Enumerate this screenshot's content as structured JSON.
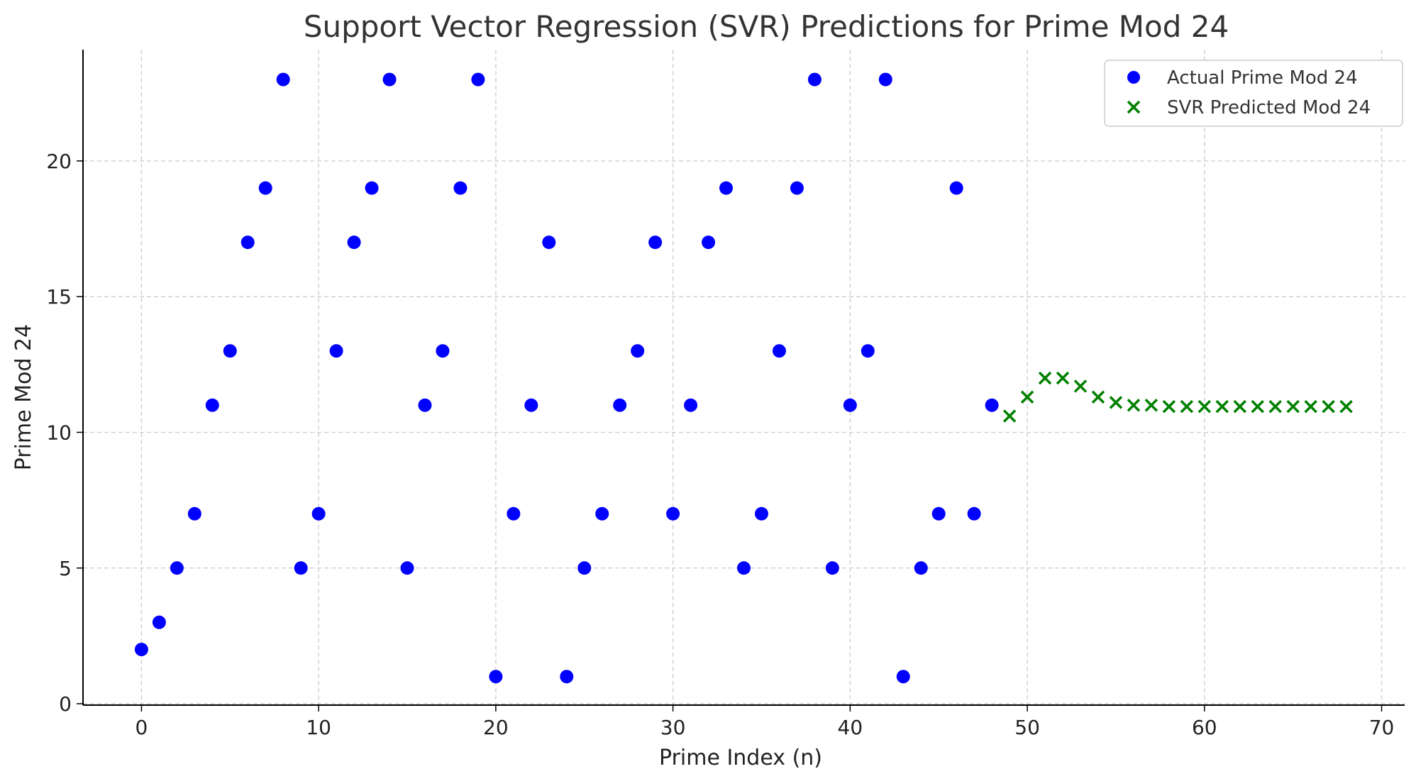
{
  "chart_data": {
    "type": "scatter",
    "title": "Support Vector Regression (SVR) Predictions for Prime Mod 24",
    "xlabel": "Prime Index (n)",
    "ylabel": "Prime Mod 24",
    "xlim": [
      -3.3,
      71.3
    ],
    "ylim": [
      -0.05,
      24.1
    ],
    "xticks": [
      0,
      10,
      20,
      30,
      40,
      50,
      60,
      70
    ],
    "yticks": [
      0,
      5,
      10,
      15,
      20
    ],
    "grid": true,
    "legend_position": "top-right",
    "series": [
      {
        "name": "Actual Prime Mod 24",
        "marker": "circle",
        "color": "#0000ff",
        "x": [
          0,
          1,
          2,
          3,
          4,
          5,
          6,
          7,
          8,
          9,
          10,
          11,
          12,
          13,
          14,
          15,
          16,
          17,
          18,
          19,
          20,
          21,
          22,
          23,
          24,
          25,
          26,
          27,
          28,
          29,
          30,
          31,
          32,
          33,
          34,
          35,
          36,
          37,
          38,
          39,
          40,
          41,
          42,
          43,
          44,
          45,
          46,
          47,
          48
        ],
        "y": [
          2,
          3,
          5,
          7,
          11,
          13,
          17,
          19,
          23,
          5,
          7,
          13,
          17,
          19,
          23,
          5,
          11,
          13,
          19,
          23,
          1,
          7,
          11,
          17,
          1,
          5,
          7,
          11,
          13,
          17,
          7,
          11,
          17,
          19,
          5,
          7,
          13,
          19,
          23,
          5,
          11,
          13,
          23,
          1,
          5,
          7,
          19,
          7,
          11
        ]
      },
      {
        "name": "SVR Predicted Mod 24",
        "marker": "x",
        "color": "#008000",
        "x": [
          49,
          50,
          51,
          52,
          53,
          54,
          55,
          56,
          57,
          58,
          59,
          60,
          61,
          62,
          63,
          64,
          65,
          66,
          67,
          68
        ],
        "y": [
          10.6,
          11.3,
          12.0,
          12.0,
          11.7,
          11.3,
          11.1,
          11.0,
          11.0,
          10.95,
          10.95,
          10.95,
          10.95,
          10.95,
          10.95,
          10.95,
          10.95,
          10.95,
          10.95,
          10.95
        ]
      }
    ]
  }
}
